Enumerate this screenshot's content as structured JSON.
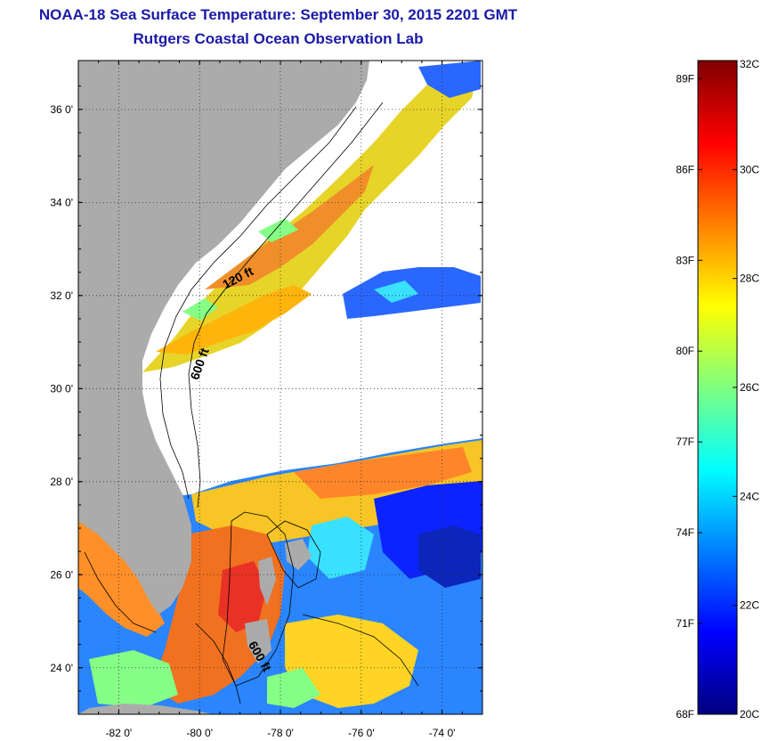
{
  "title": {
    "line1": "NOAA-18 Sea Surface Temperature:  September 30, 2015 2201 GMT",
    "line2": "Rutgers Coastal Ocean Observation Lab"
  },
  "map": {
    "lon_range": [
      -83,
      -73
    ],
    "lat_range": [
      23,
      37.05
    ],
    "lat_ticks": [
      {
        "value": 36,
        "label": "36 0'"
      },
      {
        "value": 34,
        "label": "34 0'"
      },
      {
        "value": 32,
        "label": "32 0'"
      },
      {
        "value": 30,
        "label": "30 0'"
      },
      {
        "value": 28,
        "label": "28 0'"
      },
      {
        "value": 26,
        "label": "26 0'"
      },
      {
        "value": 24,
        "label": "24 0'"
      }
    ],
    "lon_ticks": [
      {
        "value": -82,
        "label": "-82 0'"
      },
      {
        "value": -80,
        "label": "-80 0'"
      },
      {
        "value": -78,
        "label": "-78 0'"
      },
      {
        "value": -76,
        "label": "-76 0'"
      },
      {
        "value": -74,
        "label": "-74 0'"
      }
    ],
    "contour_labels": [
      {
        "text": "120 ft",
        "lon": -79.0,
        "lat": 32.3,
        "angle": -28
      },
      {
        "text": "600 ft",
        "lon": -79.9,
        "lat": 30.5,
        "angle": -70
      },
      {
        "text": "600 ft",
        "lon": -78.6,
        "lat": 24.2,
        "angle": 60
      }
    ],
    "colors": {
      "land": "#ababab",
      "no_data": "#ffffff",
      "grid": "#333333"
    }
  },
  "colorbar": {
    "min_c": 20,
    "max_c": 32,
    "celsius_labels": [
      "32C",
      "30C",
      "28C",
      "26C",
      "24C",
      "22C",
      "20C"
    ],
    "fahrenheit_labels": [
      "89F",
      "86F",
      "83F",
      "80F",
      "77F",
      "74F",
      "71F",
      "68F"
    ],
    "colormap": [
      "#00007f",
      "#0000ff",
      "#007fff",
      "#00ffff",
      "#7fff7f",
      "#ffff00",
      "#ff7f00",
      "#ff0000",
      "#7f0000"
    ]
  }
}
